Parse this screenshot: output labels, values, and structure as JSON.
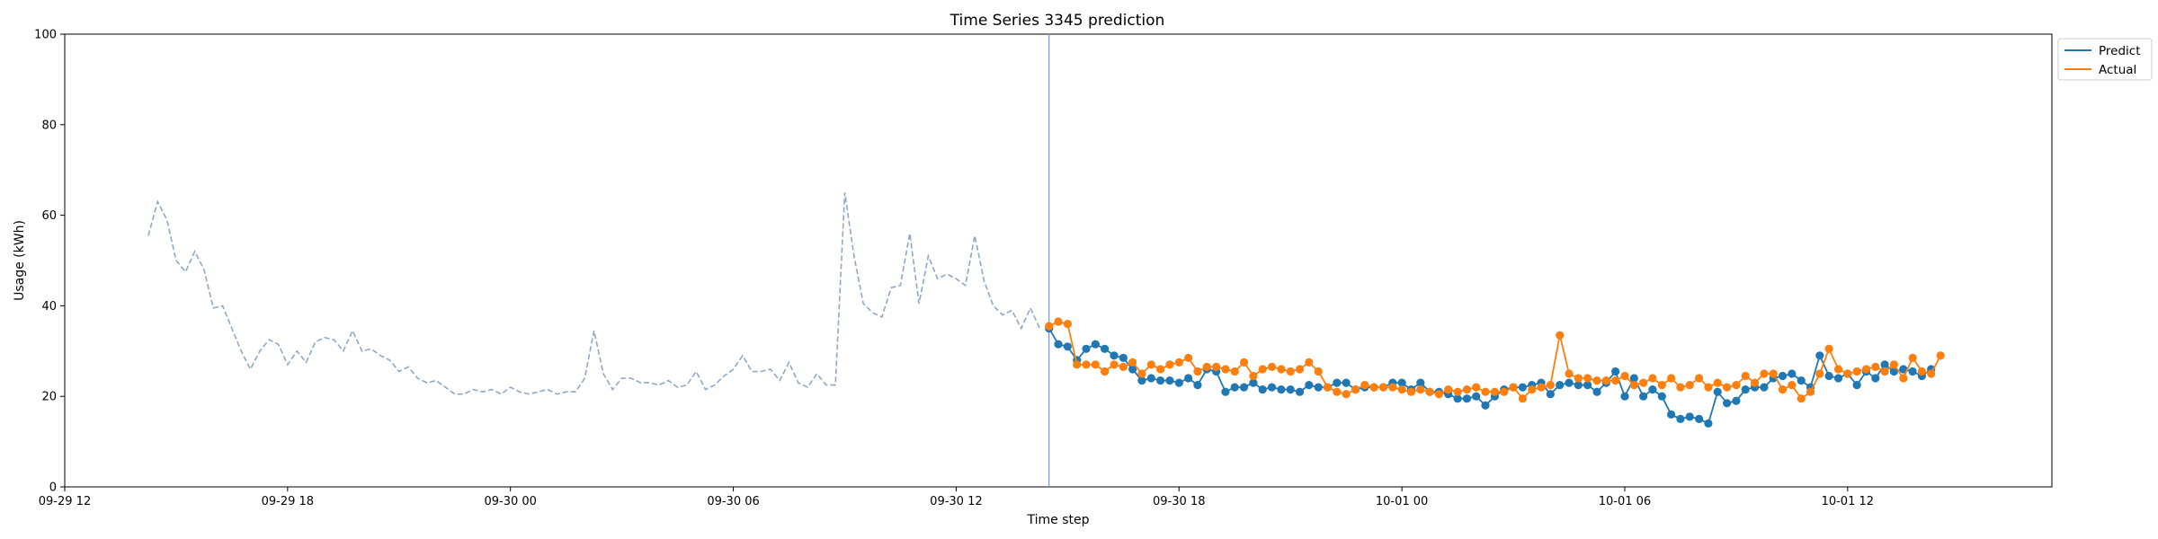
{
  "chart_data": {
    "type": "line",
    "title": "Time Series 3345 prediction",
    "xlabel": "Time step",
    "ylabel": "Usage (kWh)",
    "ylim": [
      0,
      100
    ],
    "yticks": [
      0,
      20,
      40,
      60,
      80,
      100
    ],
    "xlim": [
      "09-29 12:00",
      "10-01 17:30"
    ],
    "xticks": [
      {
        "t": "09-29 12:00",
        "label": "09-29 12"
      },
      {
        "t": "09-29 18:00",
        "label": "09-29 18"
      },
      {
        "t": "09-30 00:00",
        "label": "09-30 00"
      },
      {
        "t": "09-30 06:00",
        "label": "09-30 06"
      },
      {
        "t": "09-30 12:00",
        "label": "09-30 12"
      },
      {
        "t": "09-30 18:00",
        "label": "09-30 18"
      },
      {
        "t": "10-01 00:00",
        "label": "10-01 00"
      },
      {
        "t": "10-01 06:00",
        "label": "10-01 06"
      },
      {
        "t": "10-01 12:00",
        "label": "10-01 12"
      }
    ],
    "forecast_start": "09-30 14:30",
    "legend_position": "outside-top-right",
    "grid": false,
    "series": [
      {
        "name": "",
        "role": "history",
        "style": "dashed",
        "color": "#8fa8c8",
        "start": "09-29 14:15",
        "step_minutes": 15,
        "values": [
          55.5,
          63,
          59,
          50,
          47.5,
          52,
          48,
          39.5,
          40,
          35,
          30,
          26,
          30,
          32.5,
          31.5,
          27,
          30,
          27.5,
          32,
          33,
          32.5,
          30,
          34.5,
          30,
          30.5,
          29,
          28,
          25.5,
          26.5,
          24,
          23,
          23.5,
          22,
          20.5,
          20.5,
          21.5,
          21,
          21.5,
          20.5,
          22,
          21,
          20.5,
          21,
          21.5,
          20.5,
          21,
          21,
          24,
          34.5,
          25,
          21.5,
          24,
          24,
          23,
          23,
          22.5,
          23.5,
          22,
          22.5,
          25.5,
          21.5,
          22.5,
          24.5,
          26,
          29,
          25.5,
          25.5,
          26,
          23.5,
          27.5,
          23,
          22,
          25,
          22.5,
          22.5,
          65,
          51,
          40.5,
          38.5,
          37.5,
          44,
          44.5,
          56,
          40.5,
          51,
          46,
          47,
          46,
          44.5,
          55.5,
          45.5,
          40,
          38,
          39,
          35,
          39.5,
          35
        ]
      },
      {
        "name": "Predict",
        "color": "#1f77b4",
        "start": "09-30 14:30",
        "step_minutes": 15,
        "values": [
          35,
          31.5,
          31,
          28,
          30.5,
          31.5,
          30.5,
          29,
          28.5,
          26,
          23.5,
          24,
          23.5,
          23.5,
          23,
          24,
          22.5,
          26,
          25.5,
          21,
          22,
          22,
          23,
          21.5,
          22,
          21.5,
          21.5,
          21,
          22.5,
          22,
          22,
          23,
          23,
          21.5,
          22,
          22,
          22,
          23,
          23,
          21.5,
          23,
          21,
          21,
          20.5,
          19.5,
          19.5,
          20,
          18,
          20,
          21.5,
          22,
          22,
          22.5,
          23,
          20.5,
          22.5,
          23,
          22.5,
          22.5,
          21,
          23,
          25.5,
          20,
          24,
          20,
          21.5,
          20,
          16,
          15,
          15.5,
          15,
          14,
          21,
          18.5,
          19,
          21.5,
          22,
          22,
          24,
          24.5,
          25,
          23.5,
          22,
          29,
          24.5,
          24,
          25,
          22.5,
          25.5,
          24,
          27,
          25.5,
          26,
          25.5,
          24.5,
          26
        ]
      },
      {
        "name": "Actual",
        "color": "#ff7f0e",
        "start": "09-30 14:30",
        "step_minutes": 15,
        "values": [
          35.5,
          36.5,
          36,
          27,
          27,
          27,
          25.5,
          27,
          26.5,
          27.5,
          25,
          27,
          26,
          27,
          27.5,
          28.5,
          25.5,
          26.5,
          26.5,
          26,
          25.5,
          27.5,
          24.5,
          26,
          26.5,
          26,
          25.5,
          26,
          27.5,
          25.5,
          22,
          21,
          20.5,
          21.5,
          22.5,
          22,
          22,
          22,
          21.5,
          21,
          21.5,
          21,
          20.5,
          21.5,
          21,
          21.5,
          22,
          21,
          21,
          21,
          22,
          19.5,
          21.5,
          22,
          22.5,
          33.5,
          25,
          24,
          24,
          23.5,
          23.5,
          23.5,
          24.5,
          22.5,
          23,
          24,
          22.5,
          24,
          22,
          22.5,
          24,
          22,
          23,
          22,
          22.5,
          24.5,
          23,
          25,
          25,
          21.5,
          22.5,
          19.5,
          21,
          25,
          30.5,
          26,
          25,
          25.5,
          26,
          26.5,
          25.5,
          27,
          24,
          28.5,
          25.5,
          25,
          29
        ]
      }
    ]
  }
}
